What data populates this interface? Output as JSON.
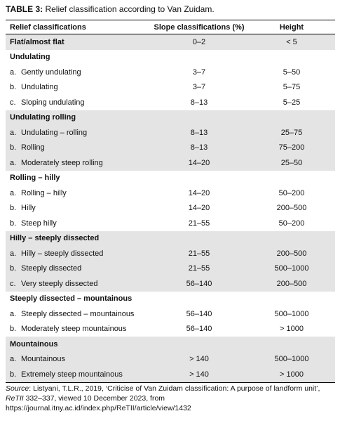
{
  "title": {
    "label": "TABLE 3:",
    "text": "Relief classification according to Van Zuidam."
  },
  "table": {
    "headers": [
      "Relief classifications",
      "Slope classifications (%)",
      "Height"
    ],
    "groups": [
      {
        "name": "Flat/almost flat",
        "values": [
          "0–2",
          "< 5"
        ],
        "rows": []
      },
      {
        "name": "Undulating",
        "rows": [
          [
            "a.",
            "Gently undulating",
            "3–7",
            "5–50"
          ],
          [
            "b.",
            "Undulating",
            "3–7",
            "5–75"
          ],
          [
            "c.",
            "Sloping undulating",
            "8–13",
            "5–25"
          ]
        ]
      },
      {
        "name": "Undulating rolling",
        "rows": [
          [
            "a.",
            "Undulating – rolling",
            "8–13",
            "25–75"
          ],
          [
            "b.",
            "Rolling",
            "8–13",
            "75–200"
          ],
          [
            "a.",
            "Moderately steep rolling",
            "14–20",
            "25–50"
          ]
        ]
      },
      {
        "name": "Rolling – hilly",
        "rows": [
          [
            "a.",
            "Rolling – hilly",
            "14–20",
            "50–200"
          ],
          [
            "b.",
            "Hilly",
            "14–20",
            "200–500"
          ],
          [
            "b.",
            "Steep hilly",
            "21–55",
            "50–200"
          ]
        ]
      },
      {
        "name": "Hilly – steeply dissected",
        "rows": [
          [
            "a.",
            "Hilly – steeply dissected",
            "21–55",
            "200–500"
          ],
          [
            "b.",
            "Steeply dissected",
            "21–55",
            "500–1000"
          ],
          [
            "c.",
            "Very steeply dissected",
            "56–140",
            "200–500"
          ]
        ]
      },
      {
        "name": "Steeply dissected – mountainous",
        "rows": [
          [
            "a.",
            "Steeply dissected – mountainous",
            "56–140",
            "500–1000"
          ],
          [
            "b.",
            "Moderately steep mountainous",
            "56–140",
            "> 1000"
          ]
        ]
      },
      {
        "name": "Mountainous",
        "rows": [
          [
            "a.",
            "Mountainous",
            "> 140",
            "500–1000"
          ],
          [
            "b.",
            "Extremely steep mountainous",
            "> 140",
            "> 1000"
          ]
        ]
      }
    ]
  },
  "source": [
    "Source",
    ": Listyani, T.L.R., 2019, ‘Criticise of Van Zuidam classification: A purpose of landform unit’, ",
    "ReTII",
    " 332–337, viewed 10 December 2023, from https://journal.itny.ac.id/index.php/ReTII/article/view/1432"
  ]
}
